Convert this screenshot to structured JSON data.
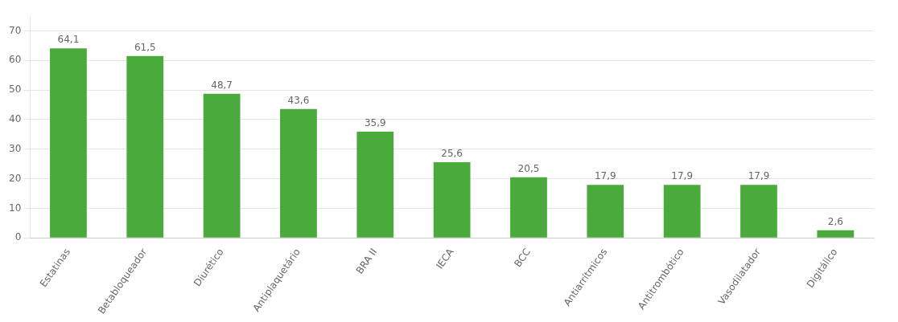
{
  "chart_data": {
    "type": "bar",
    "categories": [
      "Estatinas",
      "Betabloqueador",
      "Diurético",
      "Antiplaquetário",
      "BRA II",
      "IECA",
      "BCC",
      "Antiarrítmicos",
      "Antitrombótico",
      "Vasodilatador",
      "Digitálico"
    ],
    "values": [
      64.1,
      61.5,
      48.7,
      43.6,
      35.9,
      25.6,
      20.5,
      17.9,
      17.9,
      17.9,
      2.6
    ],
    "value_labels": [
      "64,1",
      "61,5",
      "48,7",
      "43,6",
      "35,9",
      "25,6",
      "20,5",
      "17,9",
      "17,9",
      "17,9",
      "2,6"
    ],
    "color": "#4aaa3c",
    "ylim": [
      0,
      75
    ],
    "yticks": [
      0,
      10,
      20,
      30,
      40,
      50,
      60,
      70
    ],
    "grid": true,
    "data_labels": true
  }
}
